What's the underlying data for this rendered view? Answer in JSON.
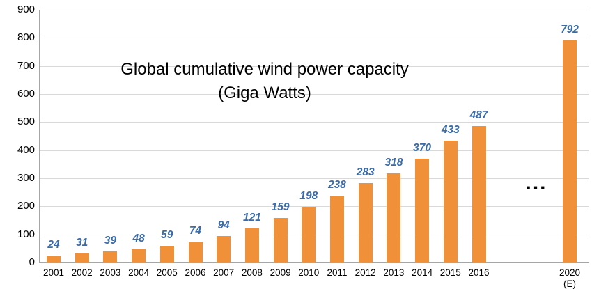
{
  "chart_data": {
    "type": "bar",
    "title": "Global cumulative wind power capacity",
    "subtitle": "(Giga Watts)",
    "categories": [
      "2001",
      "2002",
      "2003",
      "2004",
      "2005",
      "2006",
      "2007",
      "2008",
      "2009",
      "2010",
      "2011",
      "2012",
      "2013",
      "2014",
      "2015",
      "2016",
      "2020"
    ],
    "values": [
      24,
      31,
      39,
      48,
      59,
      74,
      94,
      121,
      159,
      198,
      238,
      283,
      318,
      370,
      433,
      487,
      792
    ],
    "last_category_suffix": "(E)",
    "gap_marker": "...",
    "xlabel": "",
    "ylabel": "",
    "ylim": [
      0,
      900
    ],
    "ytick_interval": 100,
    "grid": true,
    "legend": "none",
    "bar_color": "#f0913a",
    "label_color": "#3c6ca8",
    "axis_color": "#a6a6a6",
    "grid_color": "#d9d9d9"
  }
}
